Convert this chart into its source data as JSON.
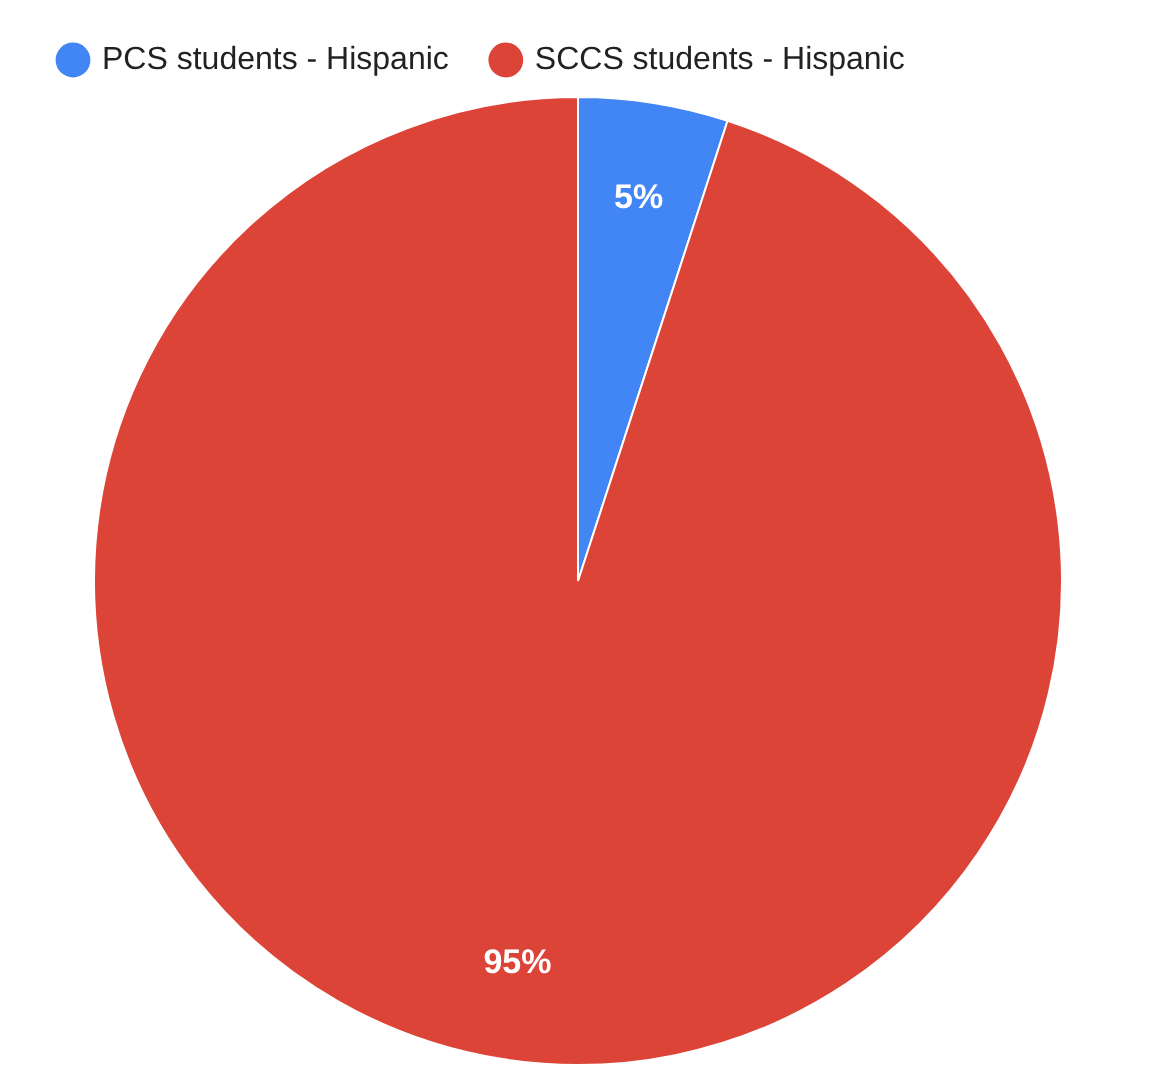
{
  "chart_data": {
    "type": "pie",
    "categories": [
      "PCS students - Hispanic",
      "SCCS students - Hispanic"
    ],
    "values": [
      5,
      95
    ],
    "colors": [
      "#4285f4",
      "#db4437"
    ],
    "value_labels": [
      "5%",
      "95%"
    ],
    "legend": "top left"
  }
}
